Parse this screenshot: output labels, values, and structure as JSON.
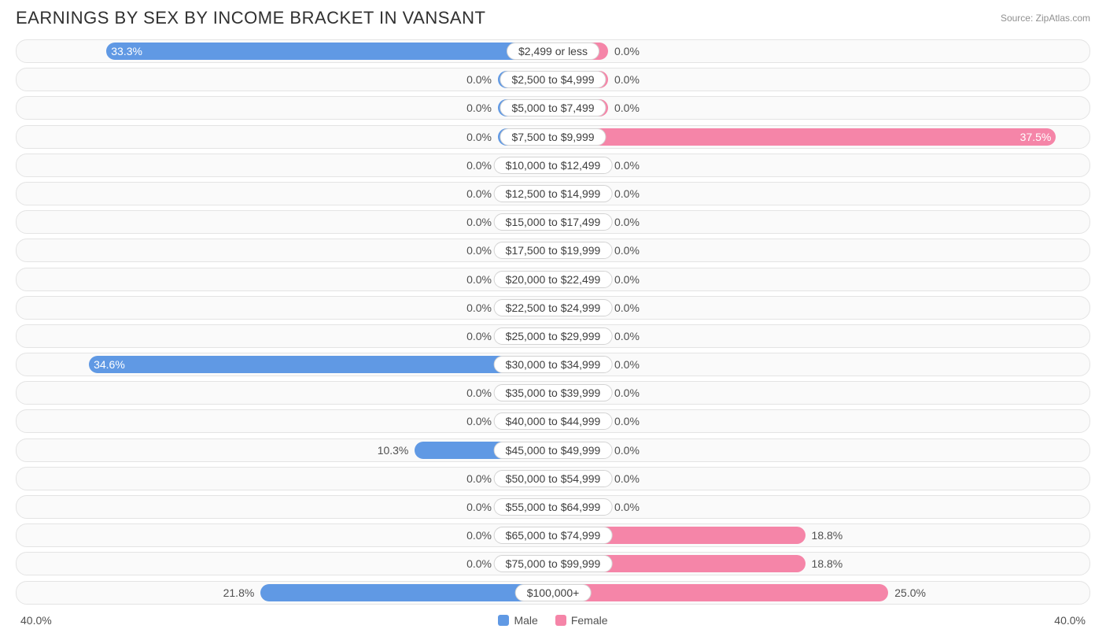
{
  "title": "EARNINGS BY SEX BY INCOME BRACKET IN VANSANT",
  "source": "Source: ZipAtlas.com",
  "axis_max_label": "40.0%",
  "axis_max": 40.0,
  "min_bar_pct": 4.3,
  "colors": {
    "male": "#6099e4",
    "female": "#f585a8",
    "track_bg": "#fafafa",
    "track_border": "#e4e4e4",
    "pill_bg": "#ffffff",
    "pill_border": "#d4d4d4",
    "text": "#505050",
    "title": "#303030",
    "source": "#909090"
  },
  "legend": {
    "male": "Male",
    "female": "Female"
  },
  "rows": [
    {
      "label": "$2,499 or less",
      "male": 33.3,
      "female": 0.0
    },
    {
      "label": "$2,500 to $4,999",
      "male": 0.0,
      "female": 0.0
    },
    {
      "label": "$5,000 to $7,499",
      "male": 0.0,
      "female": 0.0
    },
    {
      "label": "$7,500 to $9,999",
      "male": 0.0,
      "female": 37.5
    },
    {
      "label": "$10,000 to $12,499",
      "male": 0.0,
      "female": 0.0
    },
    {
      "label": "$12,500 to $14,999",
      "male": 0.0,
      "female": 0.0
    },
    {
      "label": "$15,000 to $17,499",
      "male": 0.0,
      "female": 0.0
    },
    {
      "label": "$17,500 to $19,999",
      "male": 0.0,
      "female": 0.0
    },
    {
      "label": "$20,000 to $22,499",
      "male": 0.0,
      "female": 0.0
    },
    {
      "label": "$22,500 to $24,999",
      "male": 0.0,
      "female": 0.0
    },
    {
      "label": "$25,000 to $29,999",
      "male": 0.0,
      "female": 0.0
    },
    {
      "label": "$30,000 to $34,999",
      "male": 34.6,
      "female": 0.0
    },
    {
      "label": "$35,000 to $39,999",
      "male": 0.0,
      "female": 0.0
    },
    {
      "label": "$40,000 to $44,999",
      "male": 0.0,
      "female": 0.0
    },
    {
      "label": "$45,000 to $49,999",
      "male": 10.3,
      "female": 0.0
    },
    {
      "label": "$50,000 to $54,999",
      "male": 0.0,
      "female": 0.0
    },
    {
      "label": "$55,000 to $64,999",
      "male": 0.0,
      "female": 0.0
    },
    {
      "label": "$65,000 to $74,999",
      "male": 0.0,
      "female": 18.8
    },
    {
      "label": "$75,000 to $99,999",
      "male": 0.0,
      "female": 18.8
    },
    {
      "label": "$100,000+",
      "male": 21.8,
      "female": 25.0
    }
  ]
}
